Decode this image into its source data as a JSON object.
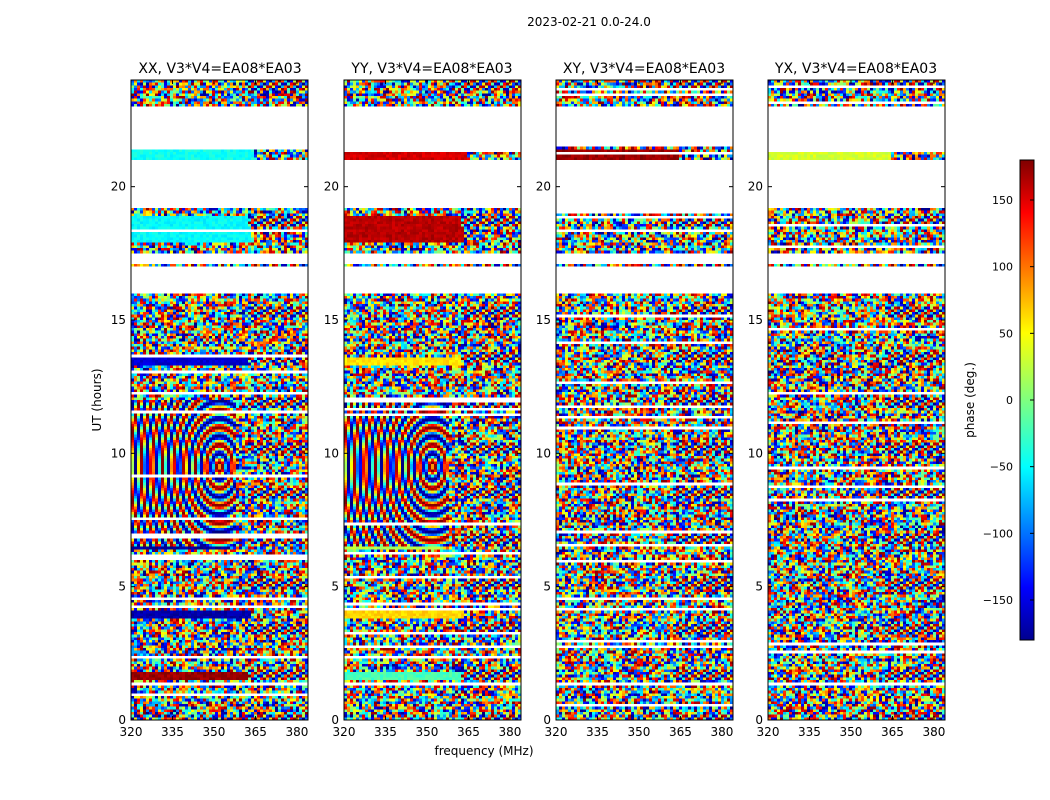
{
  "chart_data": {
    "type": "heatmap",
    "title": "2023-02-21 0.0-24.0",
    "xlabel": "frequency (MHz)",
    "ylabel": "UT (hours)",
    "xlim": [
      320,
      384
    ],
    "ylim": [
      0,
      24
    ],
    "x_ticks": [
      320,
      335,
      350,
      365,
      380
    ],
    "y_ticks": [
      0,
      5,
      10,
      15,
      20
    ],
    "panels": [
      {
        "name": "XX",
        "title": "XX, V3*V4=EA08*EA03"
      },
      {
        "name": "YY",
        "title": "YY, V3*V4=EA08*EA03"
      },
      {
        "name": "XY",
        "title": "XY, V3*V4=EA08*EA03"
      },
      {
        "name": "YX",
        "title": "YX, V3*V4=EA08*EA03"
      }
    ],
    "colorbar": {
      "label": "phase (deg.)",
      "range": [
        -180,
        180
      ],
      "ticks": [
        -150,
        -100,
        -50,
        0,
        50,
        100,
        150
      ],
      "tick_labels": [
        "−150",
        "−100",
        "−50",
        "0",
        "50",
        "100",
        "150"
      ],
      "colormap": "jet"
    },
    "empty_bands_ut": [
      [
        21.5,
        23.0
      ],
      [
        19.2,
        21.0
      ],
      [
        17.1,
        17.5
      ],
      [
        16.0,
        17.0
      ],
      [
        1.45,
        1.3
      ]
    ],
    "strong_fringe_bands": [
      {
        "ut": [
          21.05,
          21.45
        ],
        "freq": [
          320,
          364
        ],
        "phase_deg": {
          "XX": -40,
          "YY": 150,
          "XY": 170,
          "YX": 30
        }
      },
      {
        "ut": [
          17.9,
          18.9
        ],
        "freq": [
          320,
          363
        ],
        "phase_deg": {
          "XX": -45,
          "YY": 160
        }
      },
      {
        "ut": [
          13.3,
          13.6
        ],
        "freq": [
          320,
          363
        ],
        "phase_deg": {
          "XX": -150,
          "YY": 55
        }
      },
      {
        "ut": [
          6.35,
          6.55
        ],
        "freq": [
          320,
          356
        ],
        "phase_deg": {
          "XX": -170,
          "YY": 20
        }
      },
      {
        "ut": [
          3.8,
          4.05
        ],
        "freq": [
          320,
          363
        ],
        "phase_deg": {
          "XX": -165,
          "YY": 60
        }
      },
      {
        "ut": [
          1.5,
          1.8
        ],
        "freq": [
          320,
          363
        ],
        "phase_deg": {
          "XX": 170,
          "YY": -20
        }
      }
    ]
  }
}
